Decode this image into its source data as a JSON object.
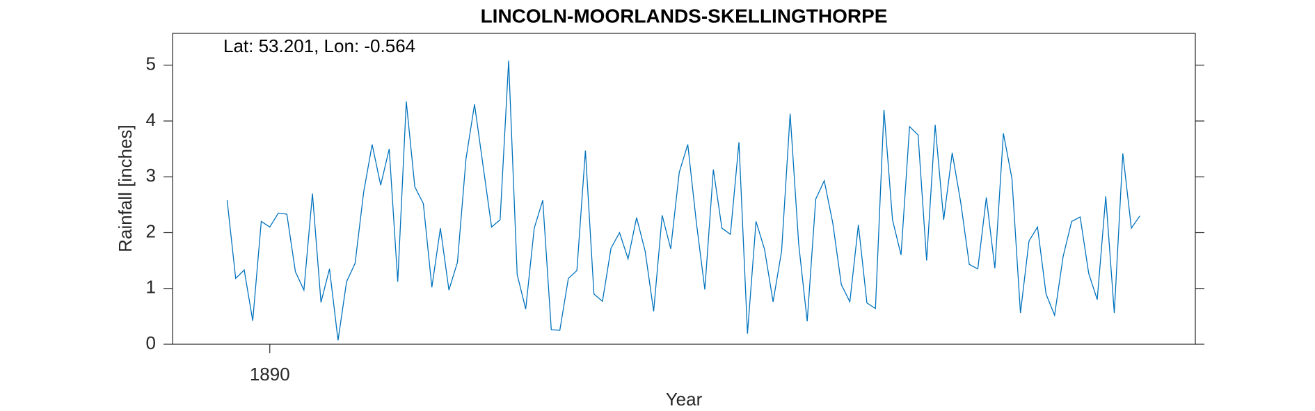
{
  "chart_data": {
    "type": "line",
    "title": "LINCOLN-MOORLANDS-SKELLINGTHORPE",
    "annotation": "Lat: 53.201, Lon: -0.564",
    "xlabel": "Year",
    "ylabel": "Rainfall [inches]",
    "x": [
      1885,
      1886,
      1887,
      1888,
      1889,
      1890,
      1891,
      1892,
      1893,
      1894,
      1895,
      1896,
      1897,
      1898,
      1899,
      1900,
      1901,
      1902,
      1903,
      1904,
      1905,
      1906,
      1907,
      1908,
      1909,
      1910,
      1911,
      1912,
      1913,
      1914,
      1915,
      1916,
      1917,
      1918,
      1919,
      1920,
      1921,
      1922,
      1923,
      1924,
      1925,
      1926,
      1927,
      1928,
      1929,
      1930,
      1931,
      1932,
      1933,
      1934,
      1935,
      1936,
      1937,
      1938,
      1939,
      1940,
      1941,
      1942,
      1943,
      1944,
      1945,
      1946,
      1947,
      1948,
      1949,
      1950,
      1951,
      1952,
      1953,
      1954,
      1955,
      1956,
      1957,
      1958,
      1959,
      1960,
      1961,
      1962,
      1963,
      1964,
      1965,
      1966,
      1967,
      1968,
      1969,
      1970,
      1971,
      1972,
      1973,
      1974,
      1975,
      1976,
      1977,
      1978,
      1979,
      1980,
      1981,
      1982,
      1983,
      1984,
      1985,
      1986,
      1987,
      1988,
      1989,
      1990,
      1991,
      1992
    ],
    "series": [
      {
        "name": "Rainfall",
        "color": "#0072bd",
        "values": [
          2.58,
          1.18,
          1.33,
          0.42,
          2.2,
          2.1,
          2.35,
          2.33,
          1.3,
          0.97,
          2.7,
          0.75,
          1.35,
          0.07,
          1.12,
          1.45,
          2.72,
          3.58,
          2.85,
          3.5,
          1.12,
          4.35,
          2.82,
          2.52,
          1.02,
          2.08,
          0.97,
          1.47,
          3.32,
          4.3,
          3.2,
          2.1,
          2.23,
          5.08,
          1.25,
          0.63,
          2.08,
          2.58,
          0.26,
          0.25,
          1.18,
          1.32,
          3.47,
          0.9,
          0.77,
          1.72,
          2.0,
          1.53,
          2.27,
          1.67,
          0.59,
          2.31,
          1.71,
          3.08,
          3.58,
          2.19,
          0.98,
          3.13,
          2.08,
          1.97,
          3.62,
          0.19,
          2.2,
          1.7,
          0.76,
          1.67,
          4.13,
          1.8,
          0.41,
          2.6,
          2.93,
          2.17,
          1.07,
          0.76,
          2.14,
          0.74,
          0.64,
          4.2,
          2.23,
          1.6,
          3.9,
          3.75,
          1.5,
          3.93,
          2.23,
          3.43,
          2.54,
          1.43,
          1.35,
          2.63,
          1.36,
          3.78,
          2.97,
          0.56,
          1.85,
          2.1,
          0.9,
          0.52,
          1.57,
          2.2,
          2.28,
          1.27,
          0.8,
          2.65,
          0.56,
          3.42,
          2.08,
          2.3
        ]
      }
    ],
    "xlim": [
      1878.6,
      1998.5
    ],
    "xticks": [
      1890
    ],
    "ylim": [
      0,
      5.57
    ],
    "yticks": [
      0,
      1,
      2,
      3,
      4,
      5
    ]
  }
}
